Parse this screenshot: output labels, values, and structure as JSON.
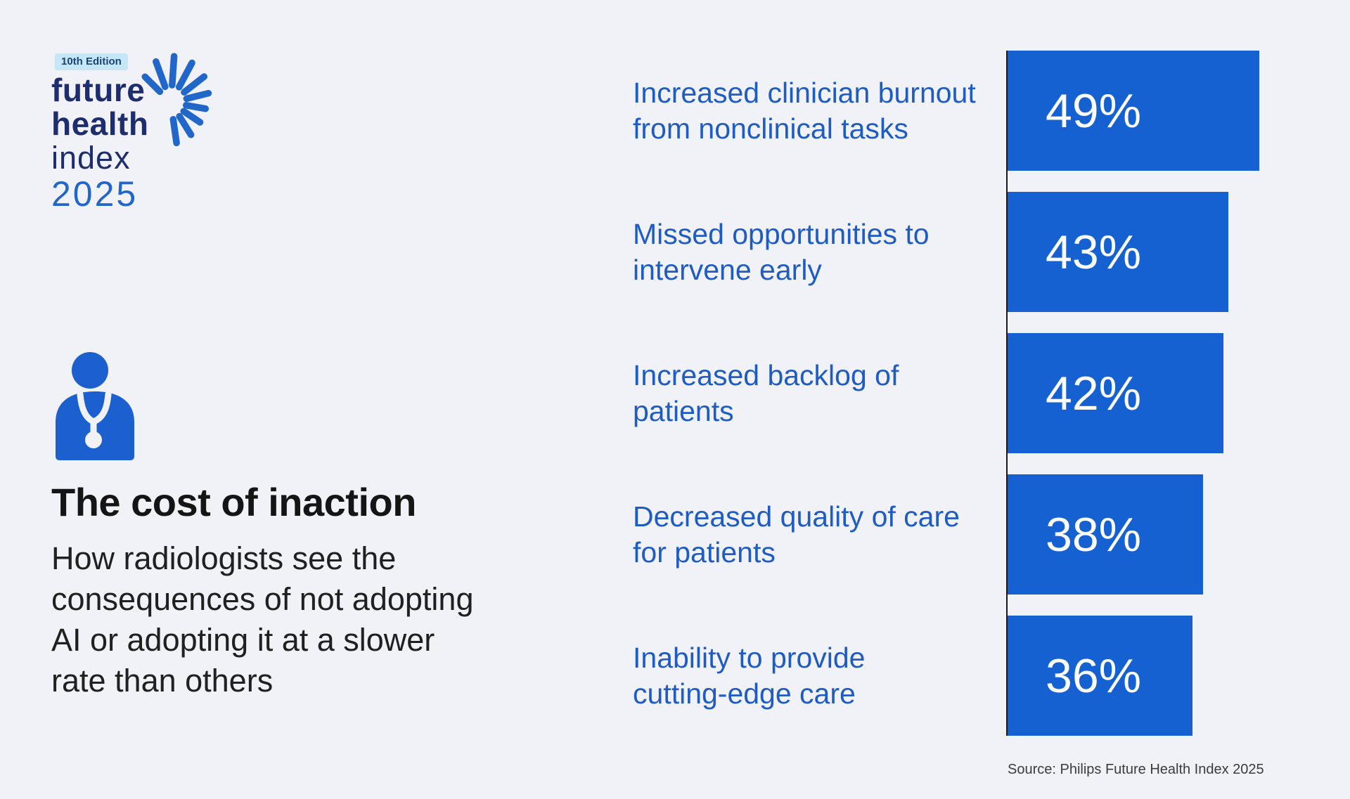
{
  "colors": {
    "background": "#f1f2f7",
    "bar_blue": "#1561d2",
    "label_blue": "#1e5cc4",
    "logo_navy": "#1e2d6e",
    "logo_blue": "#2166c9",
    "badge_bg": "#c6e7f7",
    "badge_text": "#1a4378",
    "axis_line": "#1a1a1a"
  },
  "logo": {
    "edition_badge": "10th Edition",
    "word1": "future",
    "word2": "health",
    "word3": "index",
    "word4": "2025",
    "burst_icon": "sunburst-icon",
    "person_icon": "doctor-stethoscope-icon"
  },
  "intro": {
    "heading": "The cost of inaction",
    "body": "How radiologists see the\nconsequences of not adopting\nAI or adopting it at a slower\nrate than others"
  },
  "chart_data": {
    "type": "bar",
    "orientation": "horizontal",
    "categories": [
      "Increased clinician burnout\nfrom nonclinical tasks",
      "Missed opportunities to\nintervene early",
      "Increased backlog of\npatients",
      "Decreased quality of care\nfor patients",
      "Inability to provide\ncutting-edge care"
    ],
    "values": [
      49,
      43,
      42,
      38,
      36
    ],
    "display_values": [
      "49%",
      "43%",
      "42%",
      "38%",
      "36%"
    ],
    "unit": "percent",
    "value_labels_inside_bars": true,
    "bars_scaled_to_max_value": true,
    "grid": false,
    "legend": false
  },
  "source": {
    "label": "Source: Philips Future Health Index 2025"
  }
}
